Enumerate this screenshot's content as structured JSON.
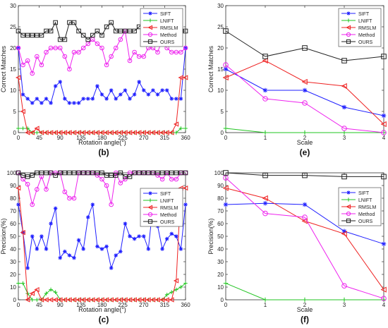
{
  "figure": {
    "panels": [
      {
        "id": "b",
        "caption": "(b)",
        "type": "line",
        "xlabel": "Rotation angle(°)",
        "ylabel": "Correct Matches",
        "xlim": [
          0,
          360
        ],
        "ylim": [
          0,
          30
        ],
        "xticks": [
          0,
          45,
          90,
          135,
          180,
          225,
          270,
          315,
          360
        ],
        "yticks": [
          0,
          5,
          10,
          15,
          20,
          25,
          30
        ],
        "legend_position": "top-right",
        "x": [
          0,
          10,
          20,
          30,
          40,
          50,
          60,
          70,
          80,
          90,
          100,
          110,
          120,
          130,
          140,
          150,
          160,
          170,
          180,
          190,
          200,
          210,
          220,
          230,
          240,
          250,
          260,
          270,
          280,
          290,
          300,
          310,
          320,
          330,
          340,
          350,
          360
        ],
        "series": [
          {
            "name": "SIFT",
            "color": "#1f1fff",
            "marker": "star",
            "values": [
              20,
              9,
              8,
              7,
              8,
              7,
              8,
              7,
              11,
              12,
              8,
              7,
              7,
              7,
              8,
              8,
              8,
              11,
              9,
              8,
              10,
              8,
              9,
              10,
              8,
              9,
              12,
              10,
              9,
              10,
              9,
              10,
              10,
              8,
              8,
              8,
              20
            ]
          },
          {
            "name": "LNIFT",
            "color": "#22c422",
            "marker": "plus",
            "values": [
              1,
              1,
              1,
              0,
              0,
              0,
              0,
              0,
              0,
              0,
              0,
              0,
              0,
              0,
              0,
              0,
              0,
              0,
              0,
              0,
              0,
              0,
              0,
              0,
              0,
              0,
              0,
              0,
              0,
              0,
              0,
              0,
              0,
              0,
              0,
              1,
              1
            ]
          },
          {
            "name": "RMSLM",
            "color": "#ee2222",
            "marker": "triangle-left",
            "values": [
              13,
              5,
              0,
              0,
              1,
              0,
              0,
              0,
              0,
              0,
              0,
              0,
              0,
              0,
              0,
              0,
              0,
              0,
              0,
              0,
              0,
              0,
              0,
              0,
              0,
              0,
              0,
              0,
              0,
              0,
              0,
              0,
              0,
              0,
              2,
              13,
              13
            ]
          },
          {
            "name": "Method",
            "color": "#ee22ee",
            "marker": "circle",
            "values": [
              20,
              16,
              17,
              14,
              18,
              16,
              19,
              20,
              20,
              20,
              18,
              15,
              19,
              19,
              20,
              21,
              22,
              21,
              20,
              16,
              18,
              20,
              22,
              24,
              17,
              19,
              18,
              18,
              20,
              20,
              19,
              22,
              20,
              19,
              19,
              19,
              20
            ]
          },
          {
            "name": "OURS",
            "color": "#222222",
            "marker": "square",
            "values": [
              24,
              23,
              23,
              23,
              23,
              23,
              24,
              24,
              26,
              22,
              22,
              26,
              26,
              24,
              23,
              22,
              23,
              24,
              23,
              25,
              26,
              24,
              24,
              24,
              24,
              24,
              25,
              26,
              26,
              25,
              24,
              24,
              24,
              24,
              24,
              24,
              24
            ]
          }
        ]
      },
      {
        "id": "e",
        "caption": "(e)",
        "type": "line",
        "xlabel": "Scale",
        "ylabel": "Correct Matches",
        "xlim": [
          0,
          4
        ],
        "ylim": [
          0,
          30
        ],
        "xticks": [
          0,
          1,
          2,
          3,
          4
        ],
        "yticks": [
          0,
          5,
          10,
          15,
          20,
          25,
          30
        ],
        "legend_position": "top-right",
        "x": [
          0,
          1,
          2,
          3,
          4
        ],
        "series": [
          {
            "name": "SIFT",
            "color": "#1f1fff",
            "marker": "star",
            "values": [
              15,
              10,
              10,
              6,
              4
            ]
          },
          {
            "name": "LNIFT",
            "color": "#22c422",
            "marker": "plus",
            "values": [
              1,
              0,
              0,
              0,
              0
            ]
          },
          {
            "name": "RMSLM",
            "color": "#ee2222",
            "marker": "triangle-left",
            "values": [
              13,
              17,
              12,
              11,
              2
            ]
          },
          {
            "name": "Method",
            "color": "#ee22ee",
            "marker": "circle",
            "values": [
              16,
              8,
              7,
              1,
              0
            ]
          },
          {
            "name": "OURS",
            "color": "#222222",
            "marker": "square",
            "values": [
              24,
              18,
              20,
              17,
              18
            ]
          }
        ]
      },
      {
        "id": "c",
        "caption": "(c)",
        "type": "line",
        "xlabel": "Rotation angle(°)",
        "ylabel": "Precision(%)",
        "xlim": [
          0,
          360
        ],
        "ylim": [
          0,
          100
        ],
        "xticks": [
          0,
          45,
          90,
          135,
          180,
          225,
          270,
          315,
          360
        ],
        "yticks": [
          0,
          10,
          20,
          30,
          40,
          50,
          60,
          70,
          80,
          90,
          100
        ],
        "legend_position": "center-right",
        "x": [
          0,
          10,
          20,
          30,
          40,
          50,
          60,
          70,
          80,
          90,
          100,
          110,
          120,
          130,
          140,
          150,
          160,
          170,
          180,
          190,
          200,
          210,
          220,
          230,
          240,
          250,
          260,
          270,
          280,
          290,
          300,
          310,
          320,
          330,
          340,
          350,
          360
        ],
        "series": [
          {
            "name": "SIFT",
            "color": "#1f1fff",
            "marker": "star",
            "values": [
              75,
              53,
              25,
              50,
              40,
              50,
              40,
              60,
              72,
              33,
              38,
              35,
              33,
              47,
              40,
              65,
              75,
              42,
              40,
              42,
              25,
              35,
              38,
              60,
              50,
              48,
              50,
              50,
              40,
              75,
              58,
              40,
              48,
              52,
              50,
              40,
              75
            ]
          },
          {
            "name": "LNIFT",
            "color": "#22c422",
            "marker": "plus",
            "values": [
              13,
              13,
              5,
              0,
              0,
              0,
              5,
              8,
              6,
              0,
              0,
              0,
              0,
              0,
              0,
              0,
              0,
              0,
              0,
              0,
              0,
              0,
              0,
              0,
              0,
              0,
              0,
              0,
              0,
              0,
              0,
              0,
              4,
              6,
              8,
              10,
              13
            ]
          },
          {
            "name": "RMSLM",
            "color": "#ee2222",
            "marker": "triangle-left",
            "values": [
              88,
              53,
              0,
              5,
              8,
              0,
              0,
              0,
              0,
              0,
              0,
              0,
              0,
              0,
              0,
              0,
              0,
              0,
              0,
              0,
              0,
              0,
              0,
              0,
              0,
              0,
              0,
              0,
              0,
              0,
              0,
              0,
              0,
              0,
              15,
              88,
              88
            ]
          },
          {
            "name": "Method",
            "color": "#ee22ee",
            "marker": "circle",
            "values": [
              100,
              95,
              91,
              75,
              87,
              97,
              87,
              100,
              100,
              100,
              85,
              80,
              80,
              100,
              100,
              100,
              100,
              98,
              95,
              90,
              75,
              100,
              92,
              95,
              100,
              100,
              100,
              100,
              100,
              100,
              98,
              95,
              100,
              95,
              95,
              100,
              100
            ]
          },
          {
            "name": "OURS",
            "color": "#222222",
            "marker": "square",
            "values": [
              100,
              98,
              97,
              98,
              100,
              100,
              100,
              100,
              98,
              100,
              100,
              100,
              100,
              100,
              100,
              100,
              100,
              100,
              100,
              98,
              98,
              98,
              100,
              97,
              97,
              100,
              100,
              100,
              100,
              100,
              100,
              100,
              100,
              100,
              100,
              100,
              100
            ]
          }
        ]
      },
      {
        "id": "f",
        "caption": "(f)",
        "type": "line",
        "xlabel": "Scale",
        "ylabel": "Precision(%)",
        "xlim": [
          0,
          4
        ],
        "ylim": [
          0,
          100
        ],
        "xticks": [
          0,
          1,
          2,
          3,
          4
        ],
        "yticks": [
          0,
          10,
          20,
          30,
          40,
          50,
          60,
          70,
          80,
          90,
          100
        ],
        "legend_position": "top-right",
        "x": [
          0,
          1,
          2,
          3,
          4
        ],
        "series": [
          {
            "name": "SIFT",
            "color": "#1f1fff",
            "marker": "star",
            "values": [
              75,
              76,
              75,
              54,
              44
            ]
          },
          {
            "name": "LNIFT",
            "color": "#22c422",
            "marker": "plus",
            "values": [
              13,
              0,
              0,
              0,
              0
            ]
          },
          {
            "name": "RMSLM",
            "color": "#ee2222",
            "marker": "triangle-left",
            "values": [
              88,
              80,
              62,
              52,
              8
            ]
          },
          {
            "name": "Method",
            "color": "#ee22ee",
            "marker": "circle",
            "values": [
              96,
              68,
              65,
              11,
              1
            ]
          },
          {
            "name": "OURS",
            "color": "#222222",
            "marker": "square",
            "values": [
              100,
              98,
              98,
              97,
              97
            ]
          }
        ]
      }
    ]
  }
}
